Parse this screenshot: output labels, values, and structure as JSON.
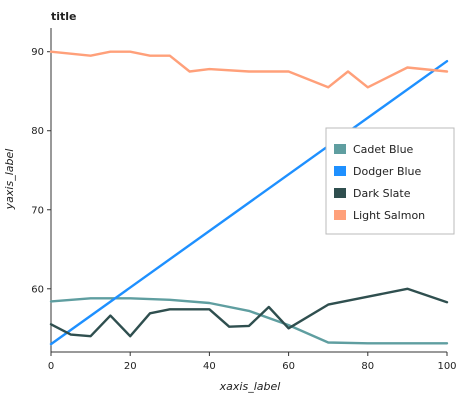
{
  "chart_data": {
    "type": "line",
    "title": "title",
    "xlabel": "xaxis_label",
    "ylabel": "yaxis_label",
    "xlim": [
      0,
      100
    ],
    "ylim": [
      52,
      93
    ],
    "x_ticks": [
      0,
      20,
      40,
      60,
      80,
      100
    ],
    "y_ticks": [
      60,
      70,
      80,
      90
    ],
    "grid": false,
    "legend": "right",
    "series": [
      {
        "name": "Cadet Blue",
        "color": "#5f9ea0",
        "x": [
          0,
          10,
          20,
          30,
          40,
          50,
          60,
          70,
          80,
          90,
          100
        ],
        "y": [
          58.4,
          58.8,
          58.8,
          58.6,
          58.2,
          57.2,
          55.4,
          53.2,
          53.1,
          53.1,
          53.1
        ]
      },
      {
        "name": "Dodger Blue",
        "color": "#1e90ff",
        "x": [
          0,
          100
        ],
        "y": [
          53,
          88.8
        ]
      },
      {
        "name": "Dark Slate",
        "color": "#2f4f4f",
        "x": [
          0,
          5,
          10,
          15,
          20,
          25,
          30,
          40,
          45,
          50,
          55,
          60,
          70,
          80,
          90,
          100
        ],
        "y": [
          55.5,
          54.2,
          54.0,
          56.6,
          54.0,
          56.9,
          57.4,
          57.4,
          55.2,
          55.3,
          57.7,
          55.0,
          58.0,
          59.0,
          60.0,
          58.3
        ]
      },
      {
        "name": "Light Salmon",
        "color": "#ffa07a",
        "x": [
          0,
          10,
          15,
          20,
          25,
          30,
          35,
          40,
          50,
          60,
          70,
          75,
          80,
          90,
          100
        ],
        "y": [
          90.0,
          89.5,
          90.0,
          90.0,
          89.5,
          89.5,
          87.5,
          87.8,
          87.5,
          87.5,
          85.5,
          87.5,
          85.5,
          88.0,
          87.5
        ]
      }
    ]
  }
}
